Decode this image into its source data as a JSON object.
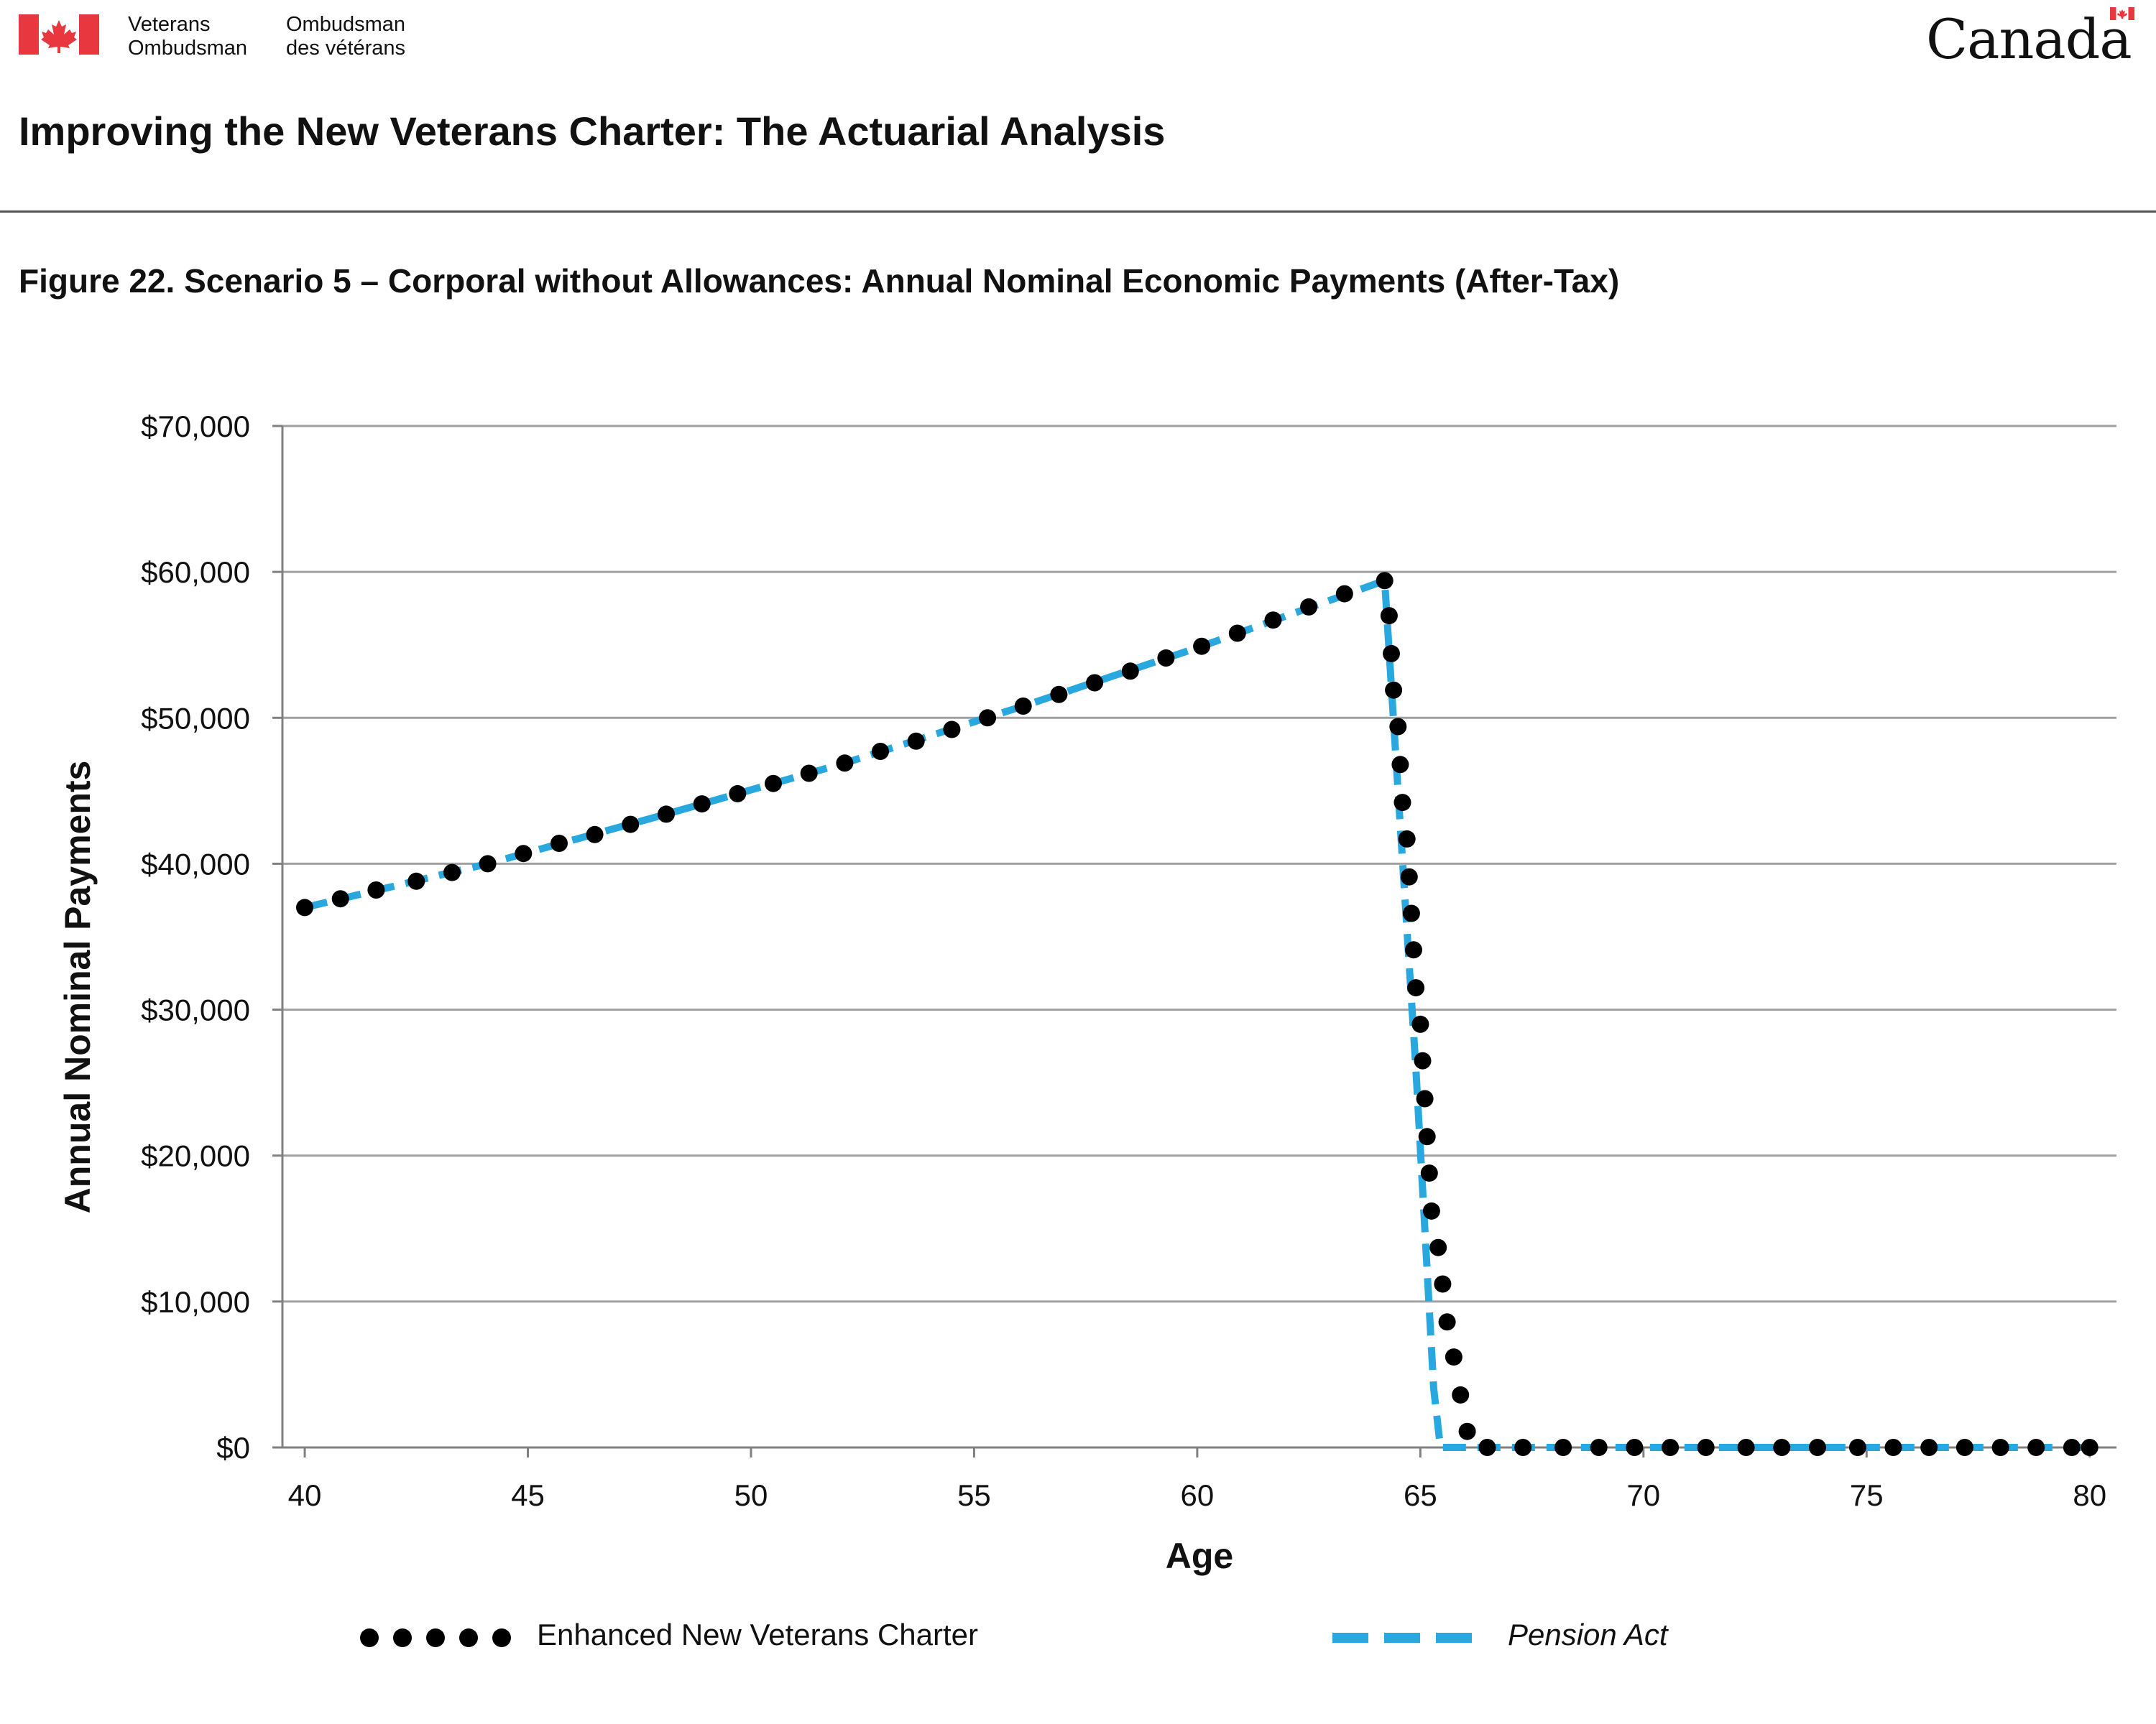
{
  "header": {
    "org_en_line1": "Veterans",
    "org_en_line2": "Ombudsman",
    "org_fr_line1": "Ombudsman",
    "org_fr_line2": "des vétérans",
    "wordmark": "Canada",
    "report_title": "Improving the New Veterans Charter: The Actuarial Analysis"
  },
  "colors": {
    "flag_red": "#E8373F",
    "pension_act": "#29A8E0",
    "enhanced_nvc": "#000000",
    "grid": "#A0A0A0",
    "axis": "#808080"
  },
  "icons": {
    "flag": "canada-flag-icon",
    "wordmark_flag": "canada-wordmark-flag-icon"
  },
  "chart_data": {
    "type": "line",
    "title": "Figure 22. Scenario 5 – Corporal without Allowances: Annual Nominal Economic Payments (After-Tax)",
    "xlabel": "Age",
    "ylabel": "Annual Nominal Payments",
    "xlim": [
      39.5,
      80.6
    ],
    "ylim": [
      0,
      70000
    ],
    "x_ticks": [
      40,
      45,
      50,
      55,
      60,
      65,
      70,
      75,
      80
    ],
    "x_tick_labels": [
      "40",
      "45",
      "50",
      "55",
      "60",
      "65",
      "70",
      "75",
      "80"
    ],
    "y_ticks": [
      0,
      10000,
      20000,
      30000,
      40000,
      50000,
      60000,
      70000
    ],
    "y_tick_labels": [
      "$0",
      "$10,000",
      "$20,000",
      "$30,000",
      "$40,000",
      "$50,000",
      "$60,000",
      "$70,000"
    ],
    "grid": "horizontal",
    "legend_position": "bottom",
    "series": [
      {
        "name": "Enhanced New Veterans Charter",
        "style": "dotted",
        "color": "#000000",
        "points": [
          [
            40.0,
            37000
          ],
          [
            40.8,
            37600
          ],
          [
            41.6,
            38200
          ],
          [
            42.5,
            38800
          ],
          [
            43.3,
            39400
          ],
          [
            44.1,
            40000
          ],
          [
            44.9,
            40700
          ],
          [
            45.7,
            41400
          ],
          [
            46.5,
            42000
          ],
          [
            47.3,
            42700
          ],
          [
            48.1,
            43400
          ],
          [
            48.9,
            44100
          ],
          [
            49.7,
            44800
          ],
          [
            50.5,
            45500
          ],
          [
            51.3,
            46200
          ],
          [
            52.1,
            46900
          ],
          [
            52.9,
            47700
          ],
          [
            53.7,
            48400
          ],
          [
            54.5,
            49200
          ],
          [
            55.3,
            50000
          ],
          [
            56.1,
            50800
          ],
          [
            56.9,
            51600
          ],
          [
            57.7,
            52400
          ],
          [
            58.5,
            53200
          ],
          [
            59.3,
            54100
          ],
          [
            60.1,
            54900
          ],
          [
            60.9,
            55800
          ],
          [
            61.7,
            56700
          ],
          [
            62.5,
            57600
          ],
          [
            63.3,
            58500
          ],
          [
            64.2,
            59400
          ],
          [
            64.3,
            57000
          ],
          [
            64.35,
            54400
          ],
          [
            64.4,
            51900
          ],
          [
            64.5,
            49400
          ],
          [
            64.55,
            46800
          ],
          [
            64.6,
            44200
          ],
          [
            64.7,
            41700
          ],
          [
            64.75,
            39100
          ],
          [
            64.8,
            36600
          ],
          [
            64.85,
            34100
          ],
          [
            64.9,
            31500
          ],
          [
            65.0,
            29000
          ],
          [
            65.05,
            26500
          ],
          [
            65.1,
            23900
          ],
          [
            65.15,
            21300
          ],
          [
            65.2,
            18800
          ],
          [
            65.25,
            16200
          ],
          [
            65.4,
            13700
          ],
          [
            65.5,
            11200
          ],
          [
            65.6,
            8600
          ],
          [
            65.75,
            6200
          ],
          [
            65.9,
            3600
          ],
          [
            66.05,
            1100
          ],
          [
            66.5,
            0
          ],
          [
            67.3,
            0
          ],
          [
            68.2,
            0
          ],
          [
            69.0,
            0
          ],
          [
            69.8,
            0
          ],
          [
            70.6,
            0
          ],
          [
            71.4,
            0
          ],
          [
            72.3,
            0
          ],
          [
            73.1,
            0
          ],
          [
            73.9,
            0
          ],
          [
            74.8,
            0
          ],
          [
            75.6,
            0
          ],
          [
            76.4,
            0
          ],
          [
            77.2,
            0
          ],
          [
            78.0,
            0
          ],
          [
            78.8,
            0
          ],
          [
            79.6,
            0
          ],
          [
            80.0,
            0
          ]
        ]
      },
      {
        "name": "Pension Act",
        "style": "dashed",
        "color": "#29A8E0",
        "points": [
          [
            40.0,
            37000
          ],
          [
            44.1,
            40000
          ],
          [
            48.1,
            43400
          ],
          [
            52.1,
            46900
          ],
          [
            56.1,
            50800
          ],
          [
            60.1,
            54900
          ],
          [
            64.2,
            59400
          ],
          [
            64.5,
            45000
          ],
          [
            64.9,
            26000
          ],
          [
            65.3,
            4000
          ],
          [
            65.45,
            0
          ],
          [
            80.0,
            0
          ]
        ]
      }
    ]
  }
}
